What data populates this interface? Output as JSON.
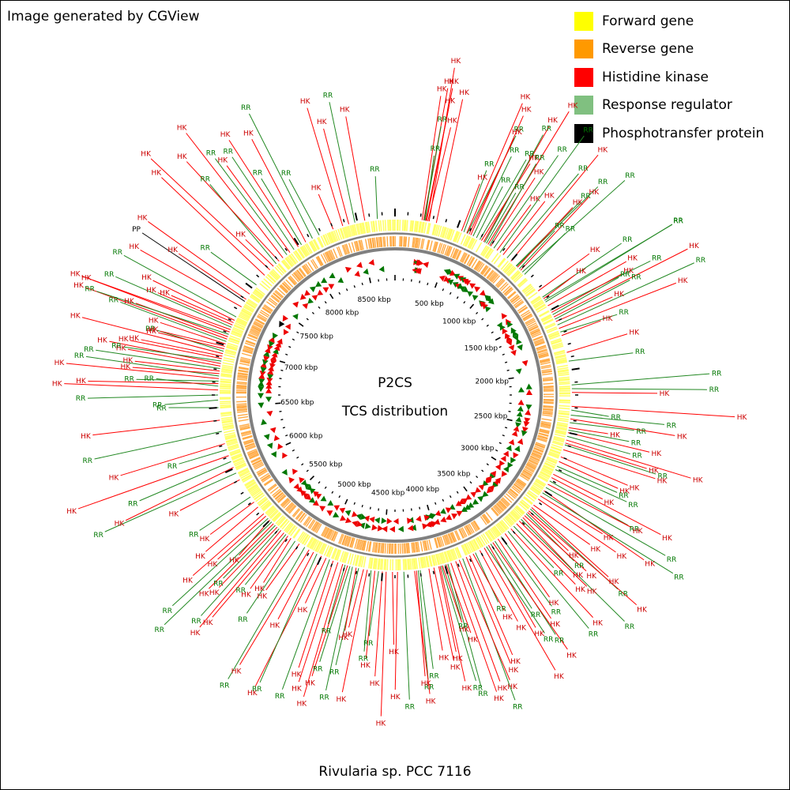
{
  "credit": "Image generated by CGView",
  "caption": "Rivularia sp. PCC 7116",
  "center": {
    "line1": "P2CS",
    "line2": "TCS distribution"
  },
  "legend": [
    {
      "key": "forward",
      "label": "Forward gene",
      "color": "#ffff00"
    },
    {
      "key": "reverse",
      "label": "Reverse gene",
      "color": "#ff9900"
    },
    {
      "key": "hk",
      "label": "Histidine kinase",
      "color": "#ff0000"
    },
    {
      "key": "rr",
      "label": "Response regulator",
      "color": "#80c080"
    },
    {
      "key": "pp",
      "label": "Phosphotransfer protein",
      "color": "#000000"
    }
  ],
  "colors": {
    "hk_label": "#cc0000",
    "rr_label": "#007700",
    "rr_line": "#228822",
    "rr_marker": "#007700",
    "hk_marker": "#ee0000",
    "backbone": "#808080",
    "forward_track": "#ffff66",
    "reverse_track": "#ffaa44"
  },
  "genome": {
    "total_kbp": 8800,
    "tick_labels": [
      "500 kbp",
      "1000 kbp",
      "1500 kbp",
      "2000 kbp",
      "2500 kbp",
      "3000 kbp",
      "3500 kbp",
      "4000 kbp",
      "4500 kbp",
      "5000 kbp",
      "5500 kbp",
      "6000 kbp",
      "6500 kbp",
      "7000 kbp",
      "7500 kbp",
      "8000 kbp",
      "8500 kbp"
    ]
  },
  "features": [
    {
      "type": "HK",
      "pos_kbp": 215,
      "text": "HK"
    },
    {
      "type": "HK",
      "pos_kbp": 228,
      "text": "HK"
    },
    {
      "type": "RR",
      "pos_kbp": 232,
      "text": "RR"
    },
    {
      "type": "RR",
      "pos_kbp": 240,
      "text": "RR"
    },
    {
      "type": "HK",
      "pos_kbp": 245,
      "text": "HK"
    },
    {
      "type": "HK",
      "pos_kbp": 252,
      "text": "HK"
    },
    {
      "type": "HK",
      "pos_kbp": 262,
      "text": "HK"
    },
    {
      "type": "HK",
      "pos_kbp": 272,
      "text": "HK"
    },
    {
      "type": "HK",
      "pos_kbp": 330,
      "text": "HK"
    },
    {
      "type": "HK",
      "pos_kbp": 540,
      "text": "HK"
    },
    {
      "type": "RR",
      "pos_kbp": 560,
      "text": "RR"
    },
    {
      "type": "HK",
      "pos_kbp": 585,
      "text": "HK"
    },
    {
      "type": "RR",
      "pos_kbp": 590,
      "text": "RR"
    },
    {
      "type": "HK",
      "pos_kbp": 605,
      "text": "HK"
    },
    {
      "type": "HK",
      "pos_kbp": 620,
      "text": "HK"
    },
    {
      "type": "RR",
      "pos_kbp": 640,
      "text": "RR"
    },
    {
      "type": "RR",
      "pos_kbp": 670,
      "text": "RR"
    },
    {
      "type": "RR",
      "pos_kbp": 700,
      "text": "RR"
    },
    {
      "type": "HK",
      "pos_kbp": 715,
      "text": "HK"
    },
    {
      "type": "HK",
      "pos_kbp": 735,
      "text": "HK"
    },
    {
      "type": "RR",
      "pos_kbp": 745,
      "text": "RR"
    },
    {
      "type": "RR",
      "pos_kbp": 760,
      "text": "RR"
    },
    {
      "type": "HK",
      "pos_kbp": 775,
      "text": "HK"
    },
    {
      "type": "RR",
      "pos_kbp": 790,
      "text": "RR"
    },
    {
      "type": "HK",
      "pos_kbp": 800,
      "text": "HK"
    },
    {
      "type": "RR",
      "pos_kbp": 830,
      "text": "RR"
    },
    {
      "type": "HK",
      "pos_kbp": 860,
      "text": "HK"
    },
    {
      "type": "RR",
      "pos_kbp": 890,
      "text": "RR"
    },
    {
      "type": "HK",
      "pos_kbp": 920,
      "text": "HK"
    },
    {
      "type": "RR",
      "pos_kbp": 960,
      "text": "RR"
    },
    {
      "type": "HK",
      "pos_kbp": 1000,
      "text": "HK"
    },
    {
      "type": "RR",
      "pos_kbp": 1055,
      "text": "RR"
    },
    {
      "type": "RR",
      "pos_kbp": 1060,
      "text": "RR"
    },
    {
      "type": "HK",
      "pos_kbp": 1070,
      "text": "HK"
    },
    {
      "type": "RR",
      "pos_kbp": 1090,
      "text": "RR"
    },
    {
      "type": "HK",
      "pos_kbp": 1105,
      "text": "HK"
    },
    {
      "type": "RR",
      "pos_kbp": 1125,
      "text": "RR"
    },
    {
      "type": "RR",
      "pos_kbp": 1150,
      "text": "RR"
    },
    {
      "type": "HK",
      "pos_kbp": 1320,
      "text": "HK"
    },
    {
      "type": "RR",
      "pos_kbp": 1380,
      "text": "RR"
    },
    {
      "type": "HK",
      "pos_kbp": 1395,
      "text": "HK"
    },
    {
      "type": "RR",
      "pos_kbp": 1410,
      "text": "RR"
    },
    {
      "type": "RR",
      "pos_kbp": 1425,
      "text": "RR"
    },
    {
      "type": "HK",
      "pos_kbp": 1460,
      "text": "HK"
    },
    {
      "type": "RR",
      "pos_kbp": 1500,
      "text": "RR"
    },
    {
      "type": "HK",
      "pos_kbp": 1520,
      "text": "HK"
    },
    {
      "type": "RR",
      "pos_kbp": 1540,
      "text": "RR"
    },
    {
      "type": "HK",
      "pos_kbp": 1560,
      "text": "HK"
    },
    {
      "type": "RR",
      "pos_kbp": 1580,
      "text": "RR"
    },
    {
      "type": "HK",
      "pos_kbp": 1600,
      "text": "HK"
    },
    {
      "type": "RR",
      "pos_kbp": 1630,
      "text": "RR"
    },
    {
      "type": "HK",
      "pos_kbp": 1660,
      "text": "HK"
    },
    {
      "type": "RR",
      "pos_kbp": 1690,
      "text": "RR"
    },
    {
      "type": "HK",
      "pos_kbp": 1720,
      "text": "HK"
    },
    {
      "type": "HK",
      "pos_kbp": 1860,
      "text": "HK"
    },
    {
      "type": "RR",
      "pos_kbp": 1930,
      "text": "RR"
    },
    {
      "type": "RR",
      "pos_kbp": 2120,
      "text": "RR"
    },
    {
      "type": "RR",
      "pos_kbp": 2150,
      "text": "RR"
    },
    {
      "type": "HK",
      "pos_kbp": 2180,
      "text": "HK"
    },
    {
      "type": "HK",
      "pos_kbp": 2290,
      "text": "HK"
    },
    {
      "type": "RR",
      "pos_kbp": 2320,
      "text": "RR"
    },
    {
      "type": "RR",
      "pos_kbp": 2360,
      "text": "RR"
    },
    {
      "type": "HK",
      "pos_kbp": 2390,
      "text": "HK"
    },
    {
      "type": "RR",
      "pos_kbp": 2420,
      "text": "RR"
    },
    {
      "type": "HK",
      "pos_kbp": 2460,
      "text": "HK"
    },
    {
      "type": "RR",
      "pos_kbp": 2480,
      "text": "RR"
    },
    {
      "type": "HK",
      "pos_kbp": 2500,
      "text": "HK"
    },
    {
      "type": "RR",
      "pos_kbp": 2530,
      "text": "RR"
    },
    {
      "type": "HK",
      "pos_kbp": 2560,
      "text": "HK"
    },
    {
      "type": "HK",
      "pos_kbp": 2585,
      "text": "HK"
    },
    {
      "type": "RR",
      "pos_kbp": 2600,
      "text": "RR"
    },
    {
      "type": "HK",
      "pos_kbp": 2640,
      "text": "HK"
    },
    {
      "type": "HK",
      "pos_kbp": 2700,
      "text": "HK"
    },
    {
      "type": "HK",
      "pos_kbp": 2740,
      "text": "HK"
    },
    {
      "type": "RR",
      "pos_kbp": 2780,
      "text": "RR"
    },
    {
      "type": "RR",
      "pos_kbp": 2810,
      "text": "RR"
    },
    {
      "type": "HK",
      "pos_kbp": 2850,
      "text": "HK"
    },
    {
      "type": "HK",
      "pos_kbp": 2880,
      "text": "HK"
    },
    {
      "type": "RR",
      "pos_kbp": 2910,
      "text": "RR"
    },
    {
      "type": "HK",
      "pos_kbp": 2940,
      "text": "HK"
    },
    {
      "type": "RR",
      "pos_kbp": 2970,
      "text": "RR"
    },
    {
      "type": "HK",
      "pos_kbp": 3000,
      "text": "HK"
    },
    {
      "type": "RR",
      "pos_kbp": 3020,
      "text": "RR"
    },
    {
      "type": "HK",
      "pos_kbp": 3050,
      "text": "HK"
    },
    {
      "type": "HK",
      "pos_kbp": 3080,
      "text": "HK"
    },
    {
      "type": "HK",
      "pos_kbp": 3140,
      "text": "HK"
    },
    {
      "type": "HK",
      "pos_kbp": 3165,
      "text": "HK"
    },
    {
      "type": "RR",
      "pos_kbp": 3180,
      "text": "RR"
    },
    {
      "type": "HK",
      "pos_kbp": 3200,
      "text": "HK"
    },
    {
      "type": "HK",
      "pos_kbp": 3215,
      "text": "HK"
    },
    {
      "type": "RR",
      "pos_kbp": 3230,
      "text": "RR"
    },
    {
      "type": "HK",
      "pos_kbp": 3250,
      "text": "HK"
    },
    {
      "type": "HK",
      "pos_kbp": 3270,
      "text": "HK"
    },
    {
      "type": "RR",
      "pos_kbp": 3290,
      "text": "RR"
    },
    {
      "type": "HK",
      "pos_kbp": 3310,
      "text": "HK"
    },
    {
      "type": "HK",
      "pos_kbp": 3340,
      "text": "HK"
    },
    {
      "type": "RR",
      "pos_kbp": 3370,
      "text": "RR"
    },
    {
      "type": "HK",
      "pos_kbp": 3400,
      "text": "HK"
    },
    {
      "type": "RR",
      "pos_kbp": 3430,
      "text": "RR"
    },
    {
      "type": "HK",
      "pos_kbp": 3460,
      "text": "HK"
    },
    {
      "type": "RR",
      "pos_kbp": 3500,
      "text": "RR"
    },
    {
      "type": "HK",
      "pos_kbp": 3530,
      "text": "HK"
    },
    {
      "type": "RR",
      "pos_kbp": 3560,
      "text": "RR"
    },
    {
      "type": "HK",
      "pos_kbp": 3580,
      "text": "HK"
    },
    {
      "type": "RR",
      "pos_kbp": 3600,
      "text": "RR"
    },
    {
      "type": "HK",
      "pos_kbp": 3620,
      "text": "HK"
    },
    {
      "type": "RR",
      "pos_kbp": 3640,
      "text": "RR"
    },
    {
      "type": "HK",
      "pos_kbp": 3660,
      "text": "HK"
    },
    {
      "type": "HK",
      "pos_kbp": 3700,
      "text": "HK"
    },
    {
      "type": "RR",
      "pos_kbp": 3740,
      "text": "RR"
    },
    {
      "type": "HK",
      "pos_kbp": 3760,
      "text": "HK"
    },
    {
      "type": "HK",
      "pos_kbp": 3790,
      "text": "HK"
    },
    {
      "type": "HK",
      "pos_kbp": 3820,
      "text": "HK"
    },
    {
      "type": "RR",
      "pos_kbp": 3850,
      "text": "RR"
    },
    {
      "type": "HK",
      "pos_kbp": 3880,
      "text": "HK"
    },
    {
      "type": "HK",
      "pos_kbp": 3910,
      "text": "HK"
    },
    {
      "type": "HK",
      "pos_kbp": 3950,
      "text": "HK"
    },
    {
      "type": "RR",
      "pos_kbp": 3975,
      "text": "RR"
    },
    {
      "type": "HK",
      "pos_kbp": 3990,
      "text": "HK"
    },
    {
      "type": "RR",
      "pos_kbp": 4000,
      "text": "RR"
    },
    {
      "type": "HK",
      "pos_kbp": 4020,
      "text": "HK"
    },
    {
      "type": "RR",
      "pos_kbp": 4030,
      "text": "RR"
    },
    {
      "type": "HK",
      "pos_kbp": 4040,
      "text": "HK"
    },
    {
      "type": "HK",
      "pos_kbp": 4050,
      "text": "HK"
    },
    {
      "type": "HK",
      "pos_kbp": 4090,
      "text": "HK"
    },
    {
      "type": "HK",
      "pos_kbp": 4130,
      "text": "HK"
    },
    {
      "type": "RR",
      "pos_kbp": 4200,
      "text": "RR"
    },
    {
      "type": "RR",
      "pos_kbp": 4215,
      "text": "RR"
    },
    {
      "type": "HK",
      "pos_kbp": 4230,
      "text": "HK"
    },
    {
      "type": "HK",
      "pos_kbp": 4245,
      "text": "HK"
    },
    {
      "type": "RR",
      "pos_kbp": 4330,
      "text": "RR"
    },
    {
      "type": "HK",
      "pos_kbp": 4380,
      "text": "HK"
    },
    {
      "type": "HK",
      "pos_kbp": 4420,
      "text": "HK"
    },
    {
      "type": "HK",
      "pos_kbp": 4470,
      "text": "HK"
    },
    {
      "type": "HK",
      "pos_kbp": 4500,
      "text": "HK"
    },
    {
      "type": "RR",
      "pos_kbp": 4530,
      "text": "RR"
    },
    {
      "type": "HK",
      "pos_kbp": 4560,
      "text": "HK"
    },
    {
      "type": "RR",
      "pos_kbp": 4590,
      "text": "RR"
    },
    {
      "type": "HK",
      "pos_kbp": 4620,
      "text": "HK"
    },
    {
      "type": "HK",
      "pos_kbp": 4650,
      "text": "HK"
    },
    {
      "type": "RR",
      "pos_kbp": 4690,
      "text": "RR"
    },
    {
      "type": "HK",
      "pos_kbp": 4710,
      "text": "HK"
    },
    {
      "type": "RR",
      "pos_kbp": 4740,
      "text": "RR"
    },
    {
      "type": "RR",
      "pos_kbp": 4760,
      "text": "RR"
    },
    {
      "type": "HK",
      "pos_kbp": 4780,
      "text": "HK"
    },
    {
      "type": "RR",
      "pos_kbp": 4800,
      "text": "RR"
    },
    {
      "type": "HK",
      "pos_kbp": 4820,
      "text": "HK"
    },
    {
      "type": "HK",
      "pos_kbp": 4860,
      "text": "HK"
    },
    {
      "type": "HK",
      "pos_kbp": 4900,
      "text": "HK"
    },
    {
      "type": "RR",
      "pos_kbp": 4930,
      "text": "RR"
    },
    {
      "type": "HK",
      "pos_kbp": 4960,
      "text": "HK"
    },
    {
      "type": "HK",
      "pos_kbp": 5000,
      "text": "HK"
    },
    {
      "type": "RR",
      "pos_kbp": 5040,
      "text": "RR"
    },
    {
      "type": "HK",
      "pos_kbp": 5070,
      "text": "HK"
    },
    {
      "type": "HK",
      "pos_kbp": 5110,
      "text": "HK"
    },
    {
      "type": "RR",
      "pos_kbp": 5150,
      "text": "RR"
    },
    {
      "type": "HK",
      "pos_kbp": 5200,
      "text": "HK"
    },
    {
      "type": "RR",
      "pos_kbp": 5240,
      "text": "RR"
    },
    {
      "type": "HK",
      "pos_kbp": 5280,
      "text": "HK"
    },
    {
      "type": "HK",
      "pos_kbp": 5310,
      "text": "HK"
    },
    {
      "type": "RR",
      "pos_kbp": 5330,
      "text": "RR"
    },
    {
      "type": "HK",
      "pos_kbp": 5350,
      "text": "HK"
    },
    {
      "type": "HK",
      "pos_kbp": 5380,
      "text": "HK"
    },
    {
      "type": "RR",
      "pos_kbp": 5400,
      "text": "RR"
    },
    {
      "type": "HK",
      "pos_kbp": 5420,
      "text": "HK"
    },
    {
      "type": "RR",
      "pos_kbp": 5440,
      "text": "RR"
    },
    {
      "type": "HK",
      "pos_kbp": 5460,
      "text": "HK"
    },
    {
      "type": "RR",
      "pos_kbp": 5480,
      "text": "RR"
    },
    {
      "type": "HK",
      "pos_kbp": 5500,
      "text": "HK"
    },
    {
      "type": "RR",
      "pos_kbp": 5520,
      "text": "RR"
    },
    {
      "type": "HK",
      "pos_kbp": 5545,
      "text": "HK"
    },
    {
      "type": "HK",
      "pos_kbp": 5570,
      "text": "HK"
    },
    {
      "type": "HK",
      "pos_kbp": 5640,
      "text": "HK"
    },
    {
      "type": "HK",
      "pos_kbp": 5690,
      "text": "HK"
    },
    {
      "type": "RR",
      "pos_kbp": 5740,
      "text": "RR"
    },
    {
      "type": "HK",
      "pos_kbp": 5900,
      "text": "HK"
    },
    {
      "type": "RR",
      "pos_kbp": 5960,
      "text": "RR"
    },
    {
      "type": "HK",
      "pos_kbp": 6010,
      "text": "HK"
    },
    {
      "type": "RR",
      "pos_kbp": 6060,
      "text": "RR"
    },
    {
      "type": "HK",
      "pos_kbp": 6110,
      "text": "HK"
    },
    {
      "type": "RR",
      "pos_kbp": 6160,
      "text": "RR"
    },
    {
      "type": "HK",
      "pos_kbp": 6210,
      "text": "HK"
    },
    {
      "type": "RR",
      "pos_kbp": 6310,
      "text": "RR"
    },
    {
      "type": "HK",
      "pos_kbp": 6400,
      "text": "HK"
    },
    {
      "type": "RR",
      "pos_kbp": 6500,
      "text": "RR"
    },
    {
      "type": "RR",
      "pos_kbp": 6560,
      "text": "RR"
    },
    {
      "type": "RR",
      "pos_kbp": 6600,
      "text": "RR"
    },
    {
      "type": "HK",
      "pos_kbp": 6640,
      "text": "HK"
    },
    {
      "type": "RR",
      "pos_kbp": 6670,
      "text": "RR"
    },
    {
      "type": "HK",
      "pos_kbp": 6690,
      "text": "HK"
    },
    {
      "type": "RR",
      "pos_kbp": 6710,
      "text": "RR"
    },
    {
      "type": "HK",
      "pos_kbp": 6730,
      "text": "HK"
    },
    {
      "type": "RR",
      "pos_kbp": 6750,
      "text": "RR"
    },
    {
      "type": "HK",
      "pos_kbp": 6770,
      "text": "HK"
    },
    {
      "type": "HK",
      "pos_kbp": 6790,
      "text": "HK"
    },
    {
      "type": "RR",
      "pos_kbp": 6810,
      "text": "RR"
    },
    {
      "type": "HK",
      "pos_kbp": 6830,
      "text": "HK"
    },
    {
      "type": "HK",
      "pos_kbp": 6850,
      "text": "HK"
    },
    {
      "type": "RR",
      "pos_kbp": 6870,
      "text": "RR"
    },
    {
      "type": "HK",
      "pos_kbp": 6890,
      "text": "HK"
    },
    {
      "type": "HK",
      "pos_kbp": 6910,
      "text": "HK"
    },
    {
      "type": "HK",
      "pos_kbp": 6930,
      "text": "HK"
    },
    {
      "type": "RR",
      "pos_kbp": 6950,
      "text": "RR"
    },
    {
      "type": "HK",
      "pos_kbp": 6970,
      "text": "HK"
    },
    {
      "type": "HK",
      "pos_kbp": 6990,
      "text": "HK"
    },
    {
      "type": "HK",
      "pos_kbp": 7010,
      "text": "HK"
    },
    {
      "type": "RR",
      "pos_kbp": 7030,
      "text": "RR"
    },
    {
      "type": "HK",
      "pos_kbp": 7050,
      "text": "HK"
    },
    {
      "type": "HK",
      "pos_kbp": 7070,
      "text": "HK"
    },
    {
      "type": "RR",
      "pos_kbp": 7090,
      "text": "RR"
    },
    {
      "type": "HK",
      "pos_kbp": 7110,
      "text": "HK"
    },
    {
      "type": "HK",
      "pos_kbp": 7130,
      "text": "HK"
    },
    {
      "type": "RR",
      "pos_kbp": 7150,
      "text": "RR"
    },
    {
      "type": "HK",
      "pos_kbp": 7170,
      "text": "HK"
    },
    {
      "type": "HK",
      "pos_kbp": 7190,
      "text": "HK"
    },
    {
      "type": "HK",
      "pos_kbp": 7210,
      "text": "HK"
    },
    {
      "type": "RR",
      "pos_kbp": 7240,
      "text": "RR"
    },
    {
      "type": "HK",
      "pos_kbp": 7330,
      "text": "HK"
    },
    {
      "type": "PP",
      "pos_kbp": 7380,
      "text": "PP"
    },
    {
      "type": "HK",
      "pos_kbp": 7400,
      "text": "HK"
    },
    {
      "type": "HK",
      "pos_kbp": 7450,
      "text": "HK"
    },
    {
      "type": "RR",
      "pos_kbp": 7540,
      "text": "RR"
    },
    {
      "type": "HK",
      "pos_kbp": 7640,
      "text": "HK"
    },
    {
      "type": "HK",
      "pos_kbp": 7700,
      "text": "HK"
    },
    {
      "type": "HK",
      "pos_kbp": 7740,
      "text": "HK"
    },
    {
      "type": "RR",
      "pos_kbp": 7770,
      "text": "RR"
    },
    {
      "type": "HK",
      "pos_kbp": 7800,
      "text": "HK"
    },
    {
      "type": "HK",
      "pos_kbp": 7840,
      "text": "HK"
    },
    {
      "type": "RR",
      "pos_kbp": 7880,
      "text": "RR"
    },
    {
      "type": "HK",
      "pos_kbp": 7910,
      "text": "HK"
    },
    {
      "type": "RR",
      "pos_kbp": 7950,
      "text": "RR"
    },
    {
      "type": "HK",
      "pos_kbp": 7990,
      "text": "HK"
    },
    {
      "type": "RR",
      "pos_kbp": 8020,
      "text": "RR"
    },
    {
      "type": "HK",
      "pos_kbp": 8060,
      "text": "HK"
    },
    {
      "type": "RR",
      "pos_kbp": 8120,
      "text": "RR"
    },
    {
      "type": "RR",
      "pos_kbp": 8180,
      "text": "RR"
    },
    {
      "type": "HK",
      "pos_kbp": 8300,
      "text": "HK"
    },
    {
      "type": "HK",
      "pos_kbp": 8380,
      "text": "HK"
    },
    {
      "type": "HK",
      "pos_kbp": 8430,
      "text": "HK"
    },
    {
      "type": "RR",
      "pos_kbp": 8480,
      "text": "RR"
    },
    {
      "type": "HK",
      "pos_kbp": 8560,
      "text": "HK"
    },
    {
      "type": "RR",
      "pos_kbp": 8660,
      "text": "RR"
    }
  ]
}
